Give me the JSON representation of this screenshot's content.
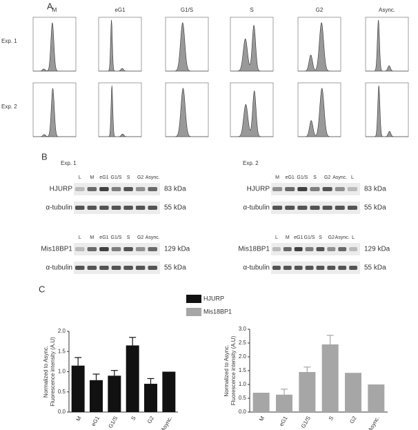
{
  "panels": [
    "A",
    "B",
    "C"
  ],
  "flow": {
    "columns": [
      "M",
      "eG1",
      "G1/S",
      "S",
      "G2",
      "Async."
    ],
    "rows": [
      "Exp. 1",
      "Exp. 2"
    ]
  },
  "blots": [
    {
      "title": "Exp. 1",
      "groups": [
        {
          "lanes": [
            "L",
            "M",
            "eG1",
            "G1/S",
            "S",
            "G2",
            "Async."
          ],
          "bands": [
            {
              "label": "HJURP",
              "size": "83 kDa"
            },
            {
              "label": "α-tubulin",
              "size": "55 kDa"
            }
          ]
        },
        {
          "lanes": [
            "L",
            "M",
            "eG1",
            "G1/S",
            "S",
            "G2",
            "Async."
          ],
          "bands": [
            {
              "label": "Mis18BP1",
              "size": "129 kDa"
            },
            {
              "label": "α-tubulin",
              "size": "55 kDa"
            }
          ]
        }
      ]
    },
    {
      "title": "Exp. 2",
      "groups": [
        {
          "lanes": [
            "M",
            "eG1",
            "G1/S",
            "S",
            "G2",
            "Async.",
            "L"
          ],
          "bands": [
            {
              "label": "HJURP",
              "size": "83 kDa"
            },
            {
              "label": "α-tubulin",
              "size": "55 kDa"
            }
          ]
        },
        {
          "lanes": [
            "L",
            "M",
            "eG1",
            "G1/S",
            "S",
            "G2",
            "Async.",
            "L"
          ],
          "bands": [
            {
              "label": "Mis18BP1",
              "size": "129 kDa"
            },
            {
              "label": "α-tubulin",
              "size": "55 kDa"
            }
          ]
        }
      ]
    }
  ],
  "chart_data": [
    {
      "type": "bar",
      "ylabel": [
        "Normalized to Async.",
        "Fluorescence intensity (A.U)"
      ],
      "categories": [
        "M",
        "eG1",
        "G1/S",
        "S",
        "G2",
        "Async."
      ],
      "series": [
        {
          "name": "HJURP",
          "color": "#111111",
          "values": [
            1.15,
            0.79,
            0.9,
            1.65,
            0.7,
            1.0
          ],
          "errors": [
            0.2,
            0.15,
            0.13,
            0.2,
            0.13,
            null
          ]
        }
      ],
      "ylim": [
        0,
        2
      ],
      "yticks": [
        {
          "value": 0,
          "label": "0.0"
        },
        {
          "value": 0.5,
          "label": "0.5"
        },
        {
          "value": 1,
          "label": "1.0"
        },
        {
          "value": 1.5,
          "label": "1.5"
        },
        {
          "value": 2,
          "label": "2.0"
        }
      ]
    },
    {
      "type": "bar",
      "ylabel": [
        "Normalized to Async.",
        "Fluorescence intensity (A.U)"
      ],
      "categories": [
        "M",
        "eG1",
        "G1/S",
        "S",
        "G2",
        "Async."
      ],
      "series": [
        {
          "name": "Mis18BP1",
          "color": "#a6a6a6",
          "values": [
            0.7,
            0.63,
            1.45,
            2.45,
            1.42,
            1.0
          ],
          "errors": [
            null,
            0.2,
            0.18,
            0.33,
            null,
            null
          ]
        }
      ],
      "ylim": [
        0,
        3
      ],
      "yticks": [
        {
          "value": 0,
          "label": "0.0"
        },
        {
          "value": 0.5,
          "label": "0.5"
        },
        {
          "value": 1,
          "label": "1.0"
        },
        {
          "value": 1.5,
          "label": "1.5"
        },
        {
          "value": 2,
          "label": "2.0"
        },
        {
          "value": 2.5,
          "label": "2.5"
        },
        {
          "value": 3,
          "label": "3.0"
        }
      ]
    }
  ]
}
